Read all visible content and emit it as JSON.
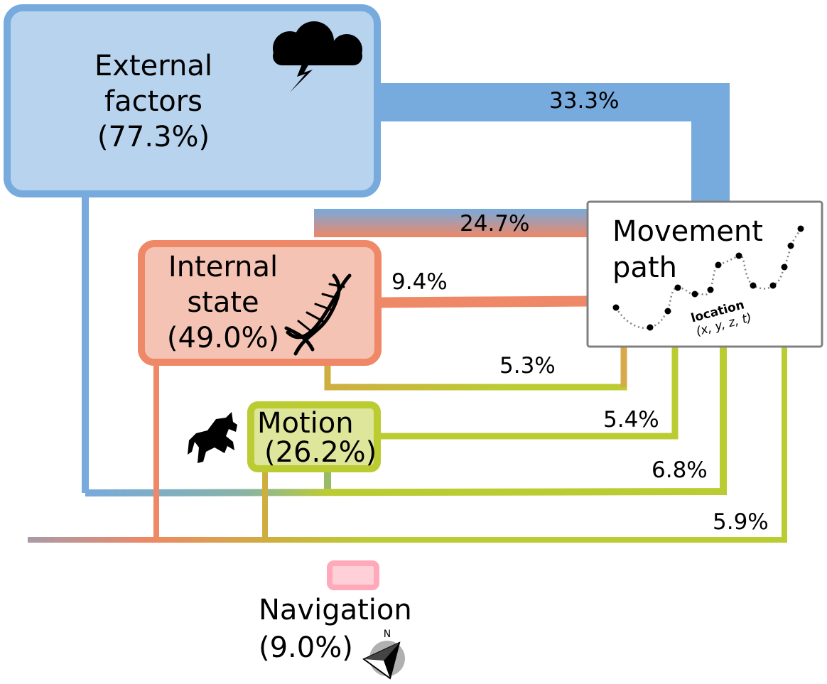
{
  "nodes": {
    "external": {
      "line1": "External",
      "line2": "factors",
      "line3": "(77.3%)",
      "fill": "#b8d3ee",
      "stroke": "#77aadd",
      "icon": "storm-cloud-icon"
    },
    "internal": {
      "line1": "Internal",
      "line2": "state",
      "line3": "(49.0%)",
      "fill": "#f4c3b3",
      "stroke": "#ee8866",
      "icon": "dna-icon"
    },
    "motion": {
      "line1": "Motion",
      "line2": "(26.2%)",
      "fill": "#dde69a",
      "stroke": "#bbcc33",
      "icon": "horse-icon"
    },
    "navigation": {
      "line1": "Navigation",
      "line2": "(9.0%)",
      "fill": "#ffd0d8",
      "stroke": "#ffaabb",
      "icon": "compass-icon",
      "compass_letter": "N"
    },
    "movement_path": {
      "line1": "Movement",
      "line2": "path",
      "location_label": "location",
      "coords": "(x, y, z, t)",
      "stroke": "#808080"
    }
  },
  "flows": {
    "external_to_path": "33.3%",
    "external_internal_to_path": "24.7%",
    "internal_to_path": "9.4%",
    "internal_motion_to_path": "5.3%",
    "motion_to_path": "5.4%",
    "external_motion_to_path": "6.8%",
    "all_to_path": "5.9%"
  },
  "colors": {
    "external": "#77aadd",
    "internal": "#ee8866",
    "motion": "#bbcc33",
    "navigation": "#ffaabb"
  }
}
